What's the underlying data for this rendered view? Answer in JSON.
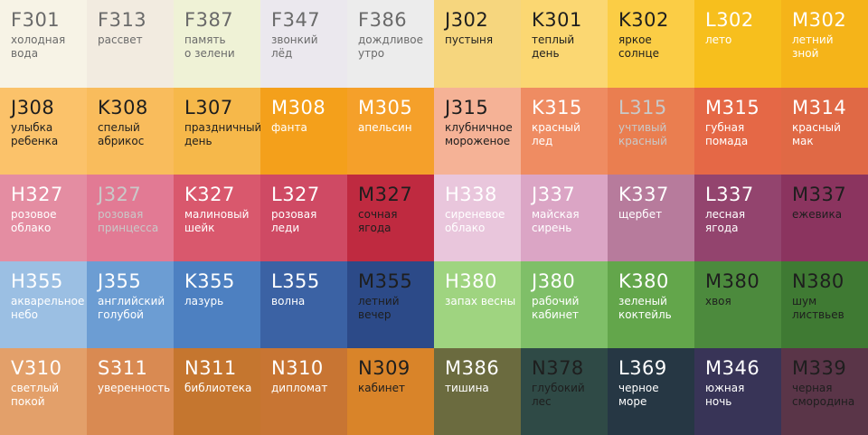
{
  "palette": {
    "swatches": [
      {
        "code": "F301",
        "name": "холодная\nвода",
        "color": "#f7f3e6"
      },
      {
        "code": "F313",
        "name": "рассвет",
        "color": "#f2ebe0"
      },
      {
        "code": "F387",
        "name": "память\nо зелени",
        "color": "#eff2d6"
      },
      {
        "code": "F347",
        "name": "звонкий\nлёд",
        "color": "#ebe8ee"
      },
      {
        "code": "F386",
        "name": "дождливое\nутро",
        "color": "#ececec"
      },
      {
        "code": "J302",
        "name": "пустыня",
        "color": "#f6d67e"
      },
      {
        "code": "K301",
        "name": "теплый\nдень",
        "color": "#fbd772"
      },
      {
        "code": "K302",
        "name": "яркое\nсолнце",
        "color": "#fbcd45"
      },
      {
        "code": "L302",
        "name": "лето",
        "color": "#f7bf1d"
      },
      {
        "code": "M302",
        "name": "летний\nзной",
        "color": "#f5b419"
      },
      {
        "code": "J308",
        "name": "улыбка\nребенка",
        "color": "#fbc26a"
      },
      {
        "code": "K308",
        "name": "спелый\nабрикос",
        "color": "#f9bc5c"
      },
      {
        "code": "L307",
        "name": "праздничный\nдень",
        "color": "#f6b84a"
      },
      {
        "code": "M308",
        "name": "фанта",
        "color": "#f4a01b"
      },
      {
        "code": "M305",
        "name": "апельсин",
        "color": "#f5a02a"
      },
      {
        "code": "J315",
        "name": "клубничное\nмороженое",
        "color": "#f5b296"
      },
      {
        "code": "K315",
        "name": "красный\nлед",
        "color": "#ef8c62"
      },
      {
        "code": "L315",
        "name": "учтивый\nкрасный",
        "color": "#ea7e50"
      },
      {
        "code": "M315",
        "name": "губная\nпомада",
        "color": "#e56846"
      },
      {
        "code": "M314",
        "name": "красный\nмак",
        "color": "#e06945"
      },
      {
        "code": "H327",
        "name": "розовое\nоблако",
        "color": "#e48da2"
      },
      {
        "code": "J327",
        "name": "розовая\nпринцесса",
        "color": "#e27a94"
      },
      {
        "code": "K327",
        "name": "малиновый\nшейк",
        "color": "#d9586d"
      },
      {
        "code": "L327",
        "name": "розовая\nледи",
        "color": "#cf4a64"
      },
      {
        "code": "M327",
        "name": "сочная\nягода",
        "color": "#bf2a40"
      },
      {
        "code": "H338",
        "name": "сиреневое\nоблако",
        "color": "#e9c6dc"
      },
      {
        "code": "J337",
        "name": "майская\nсирень",
        "color": "#dba5c5"
      },
      {
        "code": "K337",
        "name": "щербет",
        "color": "#b77b9c"
      },
      {
        "code": "L337",
        "name": "лесная\nягода",
        "color": "#93446e"
      },
      {
        "code": "M337",
        "name": "ежевика",
        "color": "#8b345f"
      },
      {
        "code": "H355",
        "name": "акварельное\nнебо",
        "color": "#9bbfe3"
      },
      {
        "code": "J355",
        "name": "английский\nголубой",
        "color": "#6c9dd3"
      },
      {
        "code": "K355",
        "name": "лазурь",
        "color": "#4d80c1"
      },
      {
        "code": "L355",
        "name": "волна",
        "color": "#3b62a4"
      },
      {
        "code": "M355",
        "name": "летний\nвечер",
        "color": "#2c4a88"
      },
      {
        "code": "H380",
        "name": "запах весны",
        "color": "#9fd480"
      },
      {
        "code": "J380",
        "name": "рабочий\nкабинет",
        "color": "#7fbf68"
      },
      {
        "code": "K380",
        "name": "зеленый\nкоктейль",
        "color": "#63a64b"
      },
      {
        "code": "M380",
        "name": "хвоя",
        "color": "#4c8a3d"
      },
      {
        "code": "N380",
        "name": "шум\nлиствьев",
        "color": "#3f7a33"
      },
      {
        "code": "V310",
        "name": "светлый\nпокой",
        "color": "#e3a06a"
      },
      {
        "code": "S311",
        "name": "уверенность",
        "color": "#d98a52"
      },
      {
        "code": "N311",
        "name": "библиотека",
        "color": "#c5762f"
      },
      {
        "code": "N310",
        "name": "дипломат",
        "color": "#c87533"
      },
      {
        "code": "N309",
        "name": "кабинет",
        "color": "#d98429"
      },
      {
        "code": "M386",
        "name": "тишина",
        "color": "#6b6b3f"
      },
      {
        "code": "N378",
        "name": "глубокий лес",
        "color": "#2f4a46"
      },
      {
        "code": "L369",
        "name": "черное\nморе",
        "color": "#263744"
      },
      {
        "code": "M346",
        "name": "южная\nночь",
        "color": "#383457"
      },
      {
        "code": "M339",
        "name": "черная\nсмородина",
        "color": "#5a3548"
      }
    ]
  }
}
